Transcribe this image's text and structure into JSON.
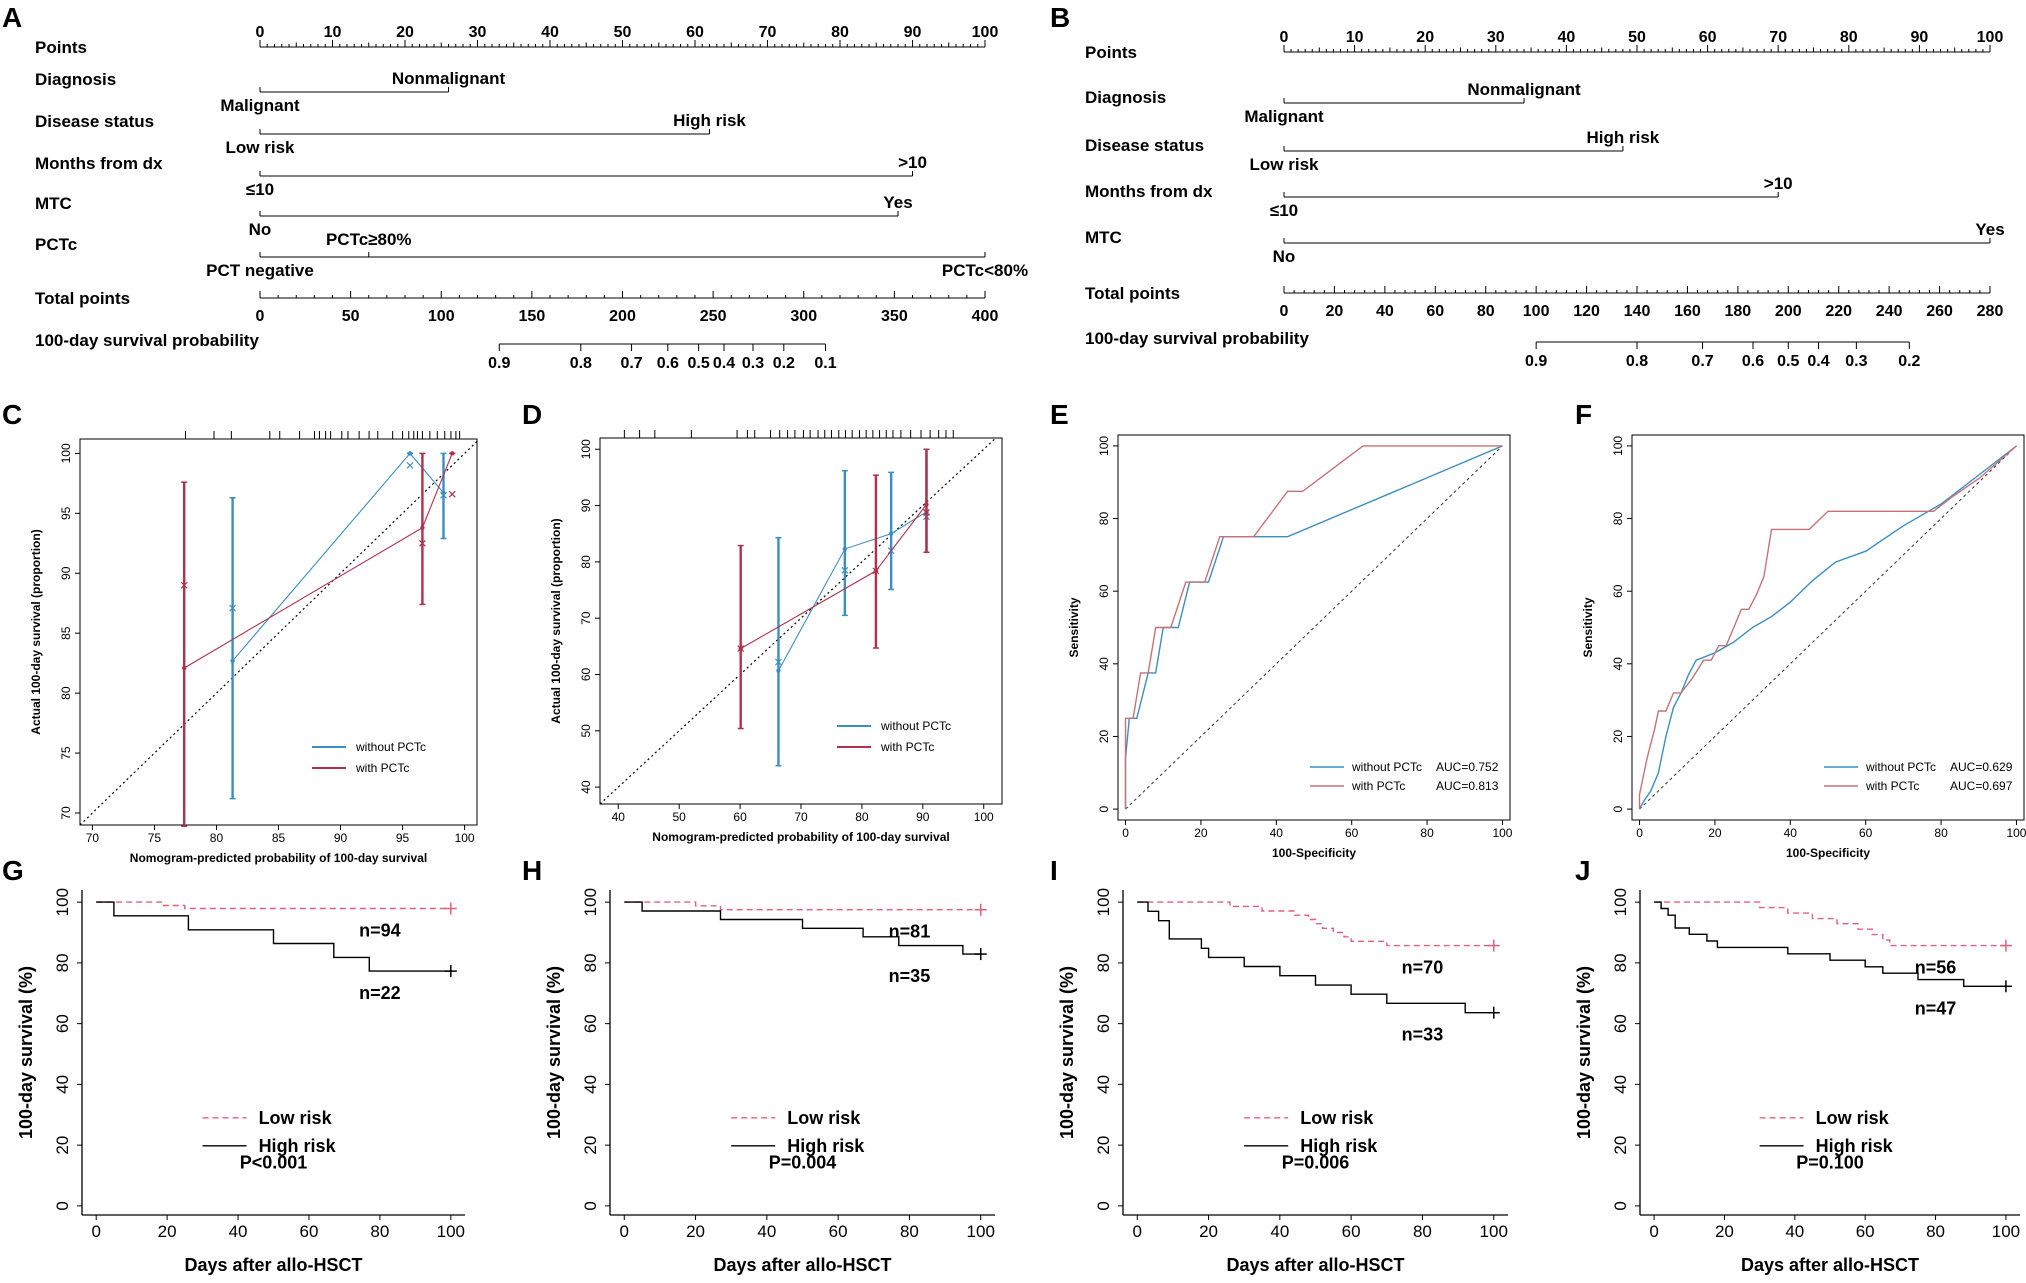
{
  "panel_letters": [
    "A",
    "B",
    "C",
    "D",
    "E",
    "F",
    "G",
    "H",
    "I",
    "J"
  ],
  "colors": {
    "blue": "#3d8ec0",
    "red": "#b0314a",
    "roc_red": "#c47478",
    "km_red": "#e0607a",
    "black": "#000000"
  },
  "chart_data": [
    {
      "panel": "A",
      "type": "nomogram",
      "points_label": "Points",
      "points_ticks": [
        "0",
        "10",
        "20",
        "30",
        "40",
        "50",
        "60",
        "70",
        "80",
        "90",
        "100"
      ],
      "variables": [
        {
          "name": "Diagnosis",
          "points": [
            0,
            26
          ],
          "labels": [
            "Malignant",
            "Nonmalignant"
          ]
        },
        {
          "name": "Disease status",
          "points": [
            0,
            62
          ],
          "labels": [
            "Low risk",
            "High risk"
          ]
        },
        {
          "name": "Months from dx",
          "points": [
            0,
            90
          ],
          "labels": [
            "≤10",
            ">10"
          ]
        },
        {
          "name": "MTC",
          "points": [
            0,
            88
          ],
          "labels": [
            "No",
            "Yes"
          ]
        },
        {
          "name": "PCTc",
          "points": [
            0,
            15,
            100
          ],
          "labels": [
            "PCT negative",
            "PCTc≥80%",
            "PCTc<80%"
          ]
        }
      ],
      "total_label": "Total points",
      "total_range": [
        0,
        400
      ],
      "total_ticks": [
        "0",
        "50",
        "100",
        "150",
        "200",
        "250",
        "300",
        "350",
        "400"
      ],
      "prob_label": "100-day survival probability",
      "prob_ticks": [
        "0.9",
        "0.8",
        "0.7",
        "0.6",
        "0.5",
        "0.4",
        "0.3",
        "0.2",
        "0.1"
      ],
      "prob_positions": [
        132,
        177,
        205,
        225,
        242,
        256,
        272,
        289,
        312
      ]
    },
    {
      "panel": "B",
      "type": "nomogram",
      "points_label": "Points",
      "points_ticks": [
        "0",
        "10",
        "20",
        "30",
        "40",
        "50",
        "60",
        "70",
        "80",
        "90",
        "100"
      ],
      "variables": [
        {
          "name": "Diagnosis",
          "points": [
            0,
            34
          ],
          "labels": [
            "Malignant",
            "Nonmalignant"
          ]
        },
        {
          "name": "Disease status",
          "points": [
            0,
            48
          ],
          "labels": [
            "Low risk",
            "High risk"
          ]
        },
        {
          "name": "Months from dx",
          "points": [
            0,
            70
          ],
          "labels": [
            "≤10",
            ">10"
          ]
        },
        {
          "name": "MTC",
          "points": [
            0,
            100
          ],
          "labels": [
            "No",
            "Yes"
          ]
        }
      ],
      "total_label": "Total points",
      "total_range": [
        0,
        280
      ],
      "total_ticks": [
        "0",
        "20",
        "40",
        "60",
        "80",
        "100",
        "120",
        "140",
        "160",
        "180",
        "200",
        "220",
        "240",
        "260",
        "280"
      ],
      "prob_label": "100-day survival probability",
      "prob_ticks": [
        "0.9",
        "0.8",
        "0.7",
        "0.6",
        "0.5",
        "0.4",
        "0.3",
        "0.2"
      ],
      "prob_positions": [
        100,
        140,
        166,
        186,
        200,
        212,
        227,
        248
      ]
    },
    {
      "panel": "C",
      "type": "calibration",
      "xlabel": "Nomogram-predicted probability of 100-day survival",
      "ylabel": "Actual 100-day survival (proportion)",
      "xlim": [
        69,
        101
      ],
      "ylim": [
        69,
        101.2
      ],
      "xticks": [
        "70",
        "75",
        "80",
        "85",
        "90",
        "95",
        "100"
      ],
      "yticks": [
        "70",
        "75",
        "80",
        "85",
        "90",
        "95",
        "100"
      ],
      "series": [
        {
          "name": "without PCTc",
          "x": [
            81.3,
            95.6,
            98.3
          ],
          "y": [
            82.7,
            100,
            96.7
          ],
          "lower": [
            71.2,
            100,
            92.9
          ],
          "upper": [
            96.3,
            100,
            100
          ],
          "cross_y": [
            87.1,
            99.0,
            96.5
          ]
        },
        {
          "name": "with PCTc",
          "x": [
            77.4,
            96.6,
            99.0
          ],
          "y": [
            82.1,
            93.8,
            100
          ],
          "lower": [
            68.9,
            87.4,
            100
          ],
          "upper": [
            97.6,
            100,
            100
          ],
          "cross_y": [
            89.0,
            92.5,
            96.6
          ]
        }
      ],
      "rug": [
        77.5,
        79.8,
        81.2,
        84.3,
        85.1,
        86.7,
        87.9,
        88.3,
        88.8,
        89.2,
        90.1,
        90.6,
        91.5,
        92.3,
        93.0,
        94.2,
        95.0,
        95.5,
        95.9,
        96.2,
        96.6,
        97.2,
        97.8,
        98.4,
        98.9,
        99.3,
        99.6
      ]
    },
    {
      "panel": "D",
      "type": "calibration",
      "xlabel": "Nomogram-predicted probability of 100-day survival",
      "ylabel": "Actual 100-day survival (proportion)",
      "xlim": [
        37,
        103
      ],
      "ylim": [
        37,
        102
      ],
      "xticks": [
        "40",
        "50",
        "60",
        "70",
        "80",
        "90",
        "100"
      ],
      "yticks": [
        "40",
        "50",
        "60",
        "70",
        "80",
        "90",
        "100"
      ],
      "series": [
        {
          "name": "without PCTc",
          "x": [
            66.3,
            77.2,
            84.8,
            90.6
          ],
          "y": [
            60.7,
            82.3,
            85.0,
            88.9
          ],
          "lower": [
            43.8,
            70.5,
            75.1,
            81.7
          ],
          "upper": [
            84.3,
            96.2,
            95.9,
            100
          ],
          "cross_y": [
            62.2,
            78.5,
            82.0,
            88.0
          ]
        },
        {
          "name": "with PCTc",
          "x": [
            60.1,
            82.3,
            90.6
          ],
          "y": [
            64.6,
            78.4,
            90.2
          ],
          "lower": [
            50.4,
            64.7,
            81.7
          ],
          "upper": [
            82.9,
            95.4,
            100
          ],
          "cross_y": [
            64.6,
            78.4,
            88.8
          ]
        }
      ],
      "rug": [
        41.0,
        43.5,
        46.0,
        52.0,
        59.5,
        61.2,
        62.4,
        65.0,
        66.5,
        67.8,
        69.0,
        70.4,
        71.5,
        72.8,
        73.9,
        75.0,
        76.2,
        77.3,
        78.4,
        79.6,
        80.7,
        81.8,
        82.9,
        84.0,
        85.1,
        86.4,
        88.0,
        89.7,
        91.2,
        92.6,
        93.8,
        95.0
      ]
    },
    {
      "panel": "E",
      "type": "roc",
      "xlabel": "100-Specificity",
      "ylabel": "Sensitivity",
      "xlim": [
        -2,
        102
      ],
      "ylim": [
        -3,
        103
      ],
      "xticks": [
        "0",
        "20",
        "40",
        "60",
        "80",
        "100"
      ],
      "yticks": [
        "0",
        "20",
        "40",
        "60",
        "80",
        "100"
      ],
      "series": [
        {
          "name": "without PCTc",
          "auc": "AUC=0.752",
          "x": [
            0,
            0,
            1,
            3,
            6,
            8,
            10,
            12,
            14,
            17,
            22,
            26,
            31,
            43,
            100
          ],
          "y": [
            0,
            14,
            25,
            25,
            37.5,
            37.5,
            50,
            50,
            50,
            62.5,
            62.5,
            75,
            75,
            75,
            100
          ]
        },
        {
          "name": "with PCTc",
          "auc": "AUC=0.813",
          "x": [
            0,
            0,
            2,
            4,
            6,
            8,
            10,
            12,
            16,
            21,
            25,
            34,
            43,
            47,
            63,
            100
          ],
          "y": [
            0,
            25,
            25,
            37.5,
            37.5,
            50,
            50,
            50,
            62.5,
            62.5,
            75,
            75,
            87.5,
            87.5,
            100,
            100
          ]
        }
      ]
    },
    {
      "panel": "F",
      "type": "roc",
      "xlabel": "100-Specificity",
      "ylabel": "Sensitivity",
      "xlim": [
        -2,
        102
      ],
      "ylim": [
        -3,
        103
      ],
      "xticks": [
        "0",
        "20",
        "40",
        "60",
        "80",
        "100"
      ],
      "yticks": [
        "0",
        "20",
        "40",
        "60",
        "80",
        "100"
      ],
      "series": [
        {
          "name": "without PCTc",
          "auc": "AUC=0.629",
          "x": [
            0,
            1,
            3,
            5,
            7,
            9,
            11,
            13,
            15,
            20,
            25,
            30,
            35,
            40,
            46,
            52,
            60,
            70,
            80,
            90,
            100
          ],
          "y": [
            0,
            2,
            5,
            10,
            20,
            28,
            32,
            37,
            41,
            43,
            46,
            50,
            53,
            57,
            63,
            68,
            71,
            78,
            84,
            92,
            100
          ]
        },
        {
          "name": "with PCTc",
          "auc": "AUC=0.697",
          "x": [
            0,
            0,
            1,
            2,
            3,
            4,
            5,
            7,
            9,
            11,
            14,
            17,
            19,
            21,
            23,
            25,
            27,
            29,
            31,
            33,
            35,
            40,
            45,
            50,
            55,
            60,
            70,
            78,
            83,
            90,
            100
          ],
          "y": [
            0,
            4,
            9,
            14,
            18,
            22,
            27,
            27,
            32,
            32,
            36,
            41,
            41,
            45,
            45,
            50,
            55,
            55,
            59,
            64,
            77,
            77,
            77,
            82,
            82,
            82,
            82,
            82,
            86,
            91,
            100
          ]
        }
      ]
    },
    {
      "panel": "G",
      "type": "kaplan-meier",
      "xlabel": "Days after allo-HSCT",
      "ylabel": "100-day survival (%)",
      "xlim": [
        -4,
        104
      ],
      "ylim": [
        -3,
        104
      ],
      "xticks": [
        "0",
        "20",
        "40",
        "60",
        "80",
        "100"
      ],
      "yticks": [
        "0",
        "20",
        "40",
        "60",
        "80",
        "100"
      ],
      "series": [
        {
          "name": "Low risk",
          "style": "dashed",
          "n": "n=94",
          "times": [
            19,
            25
          ],
          "values": [
            98.9,
            97.9
          ],
          "end": 100
        },
        {
          "name": "High risk",
          "style": "solid",
          "n": "n=22",
          "times": [
            5,
            26,
            50,
            67,
            77
          ],
          "values": [
            95.5,
            90.9,
            86.4,
            81.8,
            77.3
          ],
          "end": 100
        }
      ],
      "pvalue": "P<0.001"
    },
    {
      "panel": "H",
      "type": "kaplan-meier",
      "xlabel": "Days after allo-HSCT",
      "ylabel": "100-day survival (%)",
      "xlim": [
        -4,
        104
      ],
      "ylim": [
        -3,
        104
      ],
      "xticks": [
        "0",
        "20",
        "40",
        "60",
        "80",
        "100"
      ],
      "yticks": [
        "0",
        "20",
        "40",
        "60",
        "80",
        "100"
      ],
      "series": [
        {
          "name": "Low risk",
          "style": "dashed",
          "n": "n=81",
          "times": [
            20,
            27
          ],
          "values": [
            98.8,
            97.5
          ],
          "end": 100
        },
        {
          "name": "High risk",
          "style": "solid",
          "n": "n=35",
          "times": [
            5,
            27,
            50,
            67,
            77,
            95
          ],
          "values": [
            97.1,
            94.3,
            91.4,
            88.6,
            85.7,
            82.9
          ],
          "end": 100
        }
      ],
      "pvalue": "P=0.004"
    },
    {
      "panel": "I",
      "type": "kaplan-meier",
      "xlabel": "Days after allo-HSCT",
      "ylabel": "100-day survival (%)",
      "xlim": [
        -4,
        104
      ],
      "ylim": [
        -3,
        104
      ],
      "xticks": [
        "0",
        "20",
        "40",
        "60",
        "80",
        "100"
      ],
      "yticks": [
        "0",
        "20",
        "40",
        "60",
        "80",
        "100"
      ],
      "series": [
        {
          "name": "Low risk",
          "style": "dashed",
          "n": "n=70",
          "times": [
            26,
            35,
            44,
            48,
            50,
            52,
            55,
            58,
            60,
            62,
            65,
            67,
            70
          ],
          "values": [
            98.6,
            97.1,
            95.7,
            94.3,
            92.9,
            91.4,
            90.0,
            88.6,
            87.1,
            87.1,
            87.1,
            87.1,
            85.7
          ],
          "end": 100
        },
        {
          "name": "High risk",
          "style": "solid",
          "n": "n=33",
          "times": [
            3,
            6,
            9,
            18,
            20,
            30,
            40,
            50,
            60,
            62,
            70,
            80,
            92,
            98
          ],
          "values": [
            97.0,
            93.9,
            87.9,
            84.8,
            81.8,
            78.8,
            75.8,
            72.7,
            69.7,
            69.7,
            66.7,
            66.7,
            63.6,
            63.6
          ],
          "end": 100
        }
      ],
      "pvalue": "P=0.006"
    },
    {
      "panel": "J",
      "type": "kaplan-meier",
      "xlabel": "Days after allo-HSCT",
      "ylabel": "100-day survival (%)",
      "xlim": [
        -4,
        104
      ],
      "ylim": [
        -3,
        104
      ],
      "xticks": [
        "0",
        "20",
        "40",
        "60",
        "80",
        "100"
      ],
      "yticks": [
        "0",
        "20",
        "40",
        "60",
        "80",
        "100"
      ],
      "series": [
        {
          "name": "Low risk",
          "style": "dashed",
          "n": "n=56",
          "times": [
            30,
            38,
            45,
            52,
            58,
            62,
            65,
            67,
            69
          ],
          "values": [
            98.2,
            96.4,
            94.6,
            92.9,
            91.1,
            89.3,
            87.5,
            85.7,
            85.7
          ],
          "end": 100
        },
        {
          "name": "High risk",
          "style": "solid",
          "n": "n=47",
          "times": [
            2,
            4,
            6,
            10,
            15,
            18,
            26,
            38,
            45,
            50,
            55,
            60,
            65,
            75,
            80,
            88,
            91
          ],
          "values": [
            97.9,
            95.7,
            91.5,
            89.4,
            87.2,
            85.1,
            85.1,
            83.0,
            83.0,
            80.9,
            80.9,
            78.7,
            76.6,
            74.5,
            74.5,
            72.3,
            72.3
          ],
          "end": 100
        }
      ],
      "pvalue": "P=0.100"
    }
  ]
}
